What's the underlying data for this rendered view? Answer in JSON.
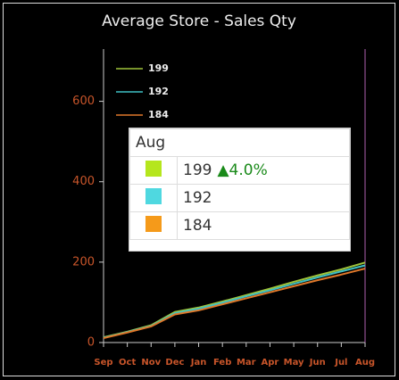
{
  "chart_data": {
    "type": "line",
    "title": "Average Store - Sales Qty",
    "categories": [
      "Sep",
      "Oct",
      "Nov",
      "Dec",
      "Jan",
      "Feb",
      "Mar",
      "Apr",
      "May",
      "Jun",
      "Jul",
      "Aug"
    ],
    "series": [
      {
        "name": "199",
        "color": "#9fc43a",
        "swatch_color": "#b5e61d",
        "values": [
          13,
          27,
          43,
          76,
          87,
          102,
          118,
          134,
          151,
          167,
          182,
          199
        ]
      },
      {
        "name": "192",
        "color": "#3fc0c4",
        "swatch_color": "#4fd8e0",
        "values": [
          12,
          26,
          41,
          73,
          84,
          99,
          115,
          130,
          146,
          162,
          177,
          192
        ]
      },
      {
        "name": "184",
        "color": "#e0782a",
        "swatch_color": "#f59a1a",
        "values": [
          11,
          25,
          40,
          70,
          80,
          95,
          110,
          125,
          140,
          155,
          169,
          184
        ]
      }
    ],
    "ylim": [
      0,
      730
    ],
    "yticks": [
      0,
      200,
      400,
      600
    ],
    "tooltip": {
      "category_index": 11,
      "change": "▲4.0%"
    }
  }
}
